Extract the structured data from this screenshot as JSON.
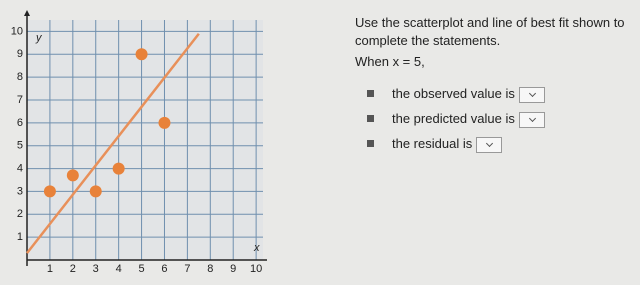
{
  "chart_data": {
    "type": "scatter",
    "xlabel": "x",
    "ylabel": "y",
    "xlim": [
      0,
      10.3
    ],
    "ylim": [
      0,
      10.5
    ],
    "xticks": [
      1,
      2,
      3,
      4,
      5,
      6,
      7,
      8,
      9,
      10
    ],
    "yticks": [
      1,
      2,
      3,
      4,
      5,
      6,
      7,
      8,
      9,
      10
    ],
    "grid": true,
    "series": [
      {
        "type": "scatter",
        "color": "#e8823a",
        "x": [
          1,
          2,
          3,
          4,
          5,
          6
        ],
        "values": [
          3,
          3.7,
          3,
          4,
          9,
          6
        ]
      },
      {
        "type": "line",
        "color": "#e8905a",
        "x": [
          0,
          7.5
        ],
        "values": [
          0.3,
          9.9
        ]
      }
    ]
  },
  "question": {
    "instruction": "Use the scatterplot and line of best fit shown to complete the statements.",
    "condition": "When x = 5,",
    "statements": [
      "the observed value is",
      "the predicted value is",
      "the residual is"
    ]
  }
}
